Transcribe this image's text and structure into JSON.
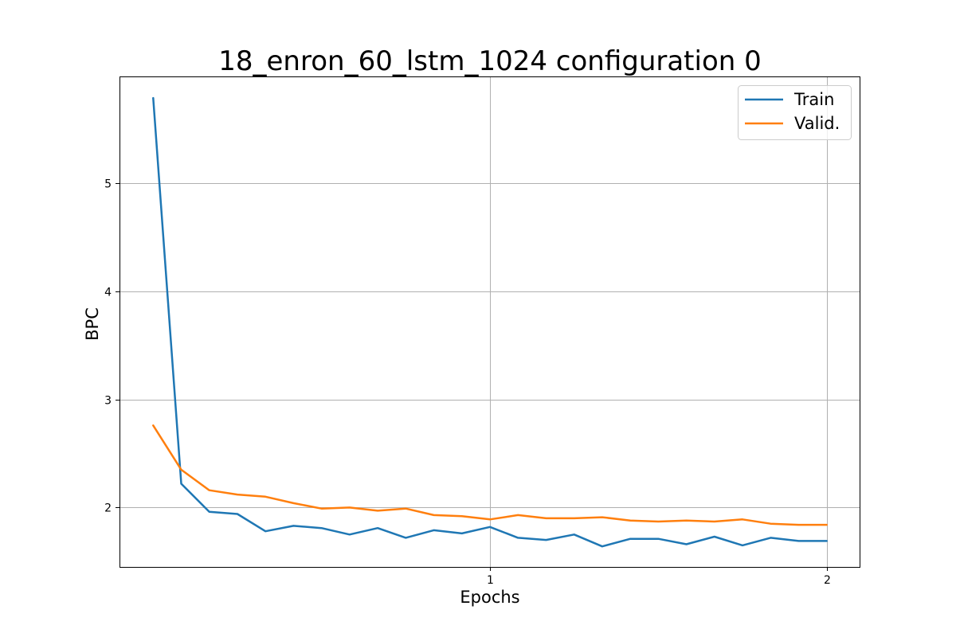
{
  "chart_data": {
    "type": "line",
    "title": "18_enron_60_lstm_1024 configuration 0",
    "xlabel": "Epochs",
    "ylabel": "BPC",
    "xlim": [
      -0.1,
      2.1
    ],
    "ylim": [
      1.45,
      5.99
    ],
    "xticks": [
      1,
      2
    ],
    "xtick_labels": [
      "1",
      "2"
    ],
    "yticks": [
      2,
      3,
      4,
      5
    ],
    "ytick_labels": [
      "2",
      "3",
      "4",
      "5"
    ],
    "grid": true,
    "legend_position": "top-right",
    "x": [
      0.0,
      0.0833,
      0.1667,
      0.25,
      0.3333,
      0.4167,
      0.5,
      0.5833,
      0.6667,
      0.75,
      0.8333,
      0.9167,
      1.0,
      1.0833,
      1.1667,
      1.25,
      1.3333,
      1.4167,
      1.5,
      1.5833,
      1.6667,
      1.75,
      1.8333,
      1.9167,
      2.0
    ],
    "series": [
      {
        "name": "Train",
        "color": "#1f77b4",
        "values": [
          5.79,
          2.22,
          1.96,
          1.94,
          1.78,
          1.83,
          1.81,
          1.75,
          1.81,
          1.72,
          1.79,
          1.76,
          1.82,
          1.72,
          1.7,
          1.75,
          1.64,
          1.71,
          1.71,
          1.66,
          1.73,
          1.65,
          1.72,
          1.69,
          1.69
        ]
      },
      {
        "name": "Valid.",
        "color": "#ff7f0e",
        "values": [
          2.76,
          2.35,
          2.16,
          2.12,
          2.1,
          2.04,
          1.99,
          2.0,
          1.97,
          1.99,
          1.93,
          1.92,
          1.89,
          1.93,
          1.9,
          1.9,
          1.91,
          1.88,
          1.87,
          1.88,
          1.87,
          1.89,
          1.85,
          1.84,
          1.84
        ]
      }
    ]
  }
}
